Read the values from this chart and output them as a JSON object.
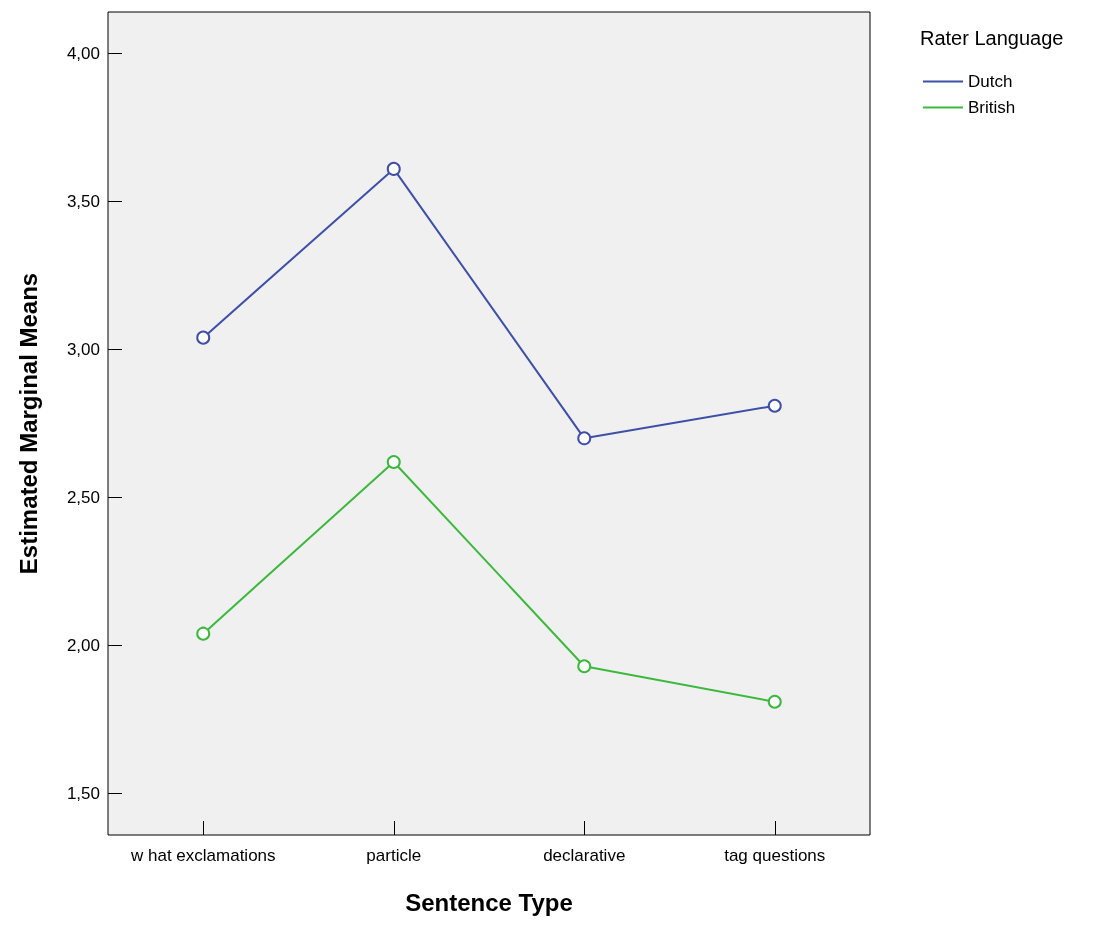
{
  "chart_data": {
    "type": "line",
    "xlabel": "Sentence Type",
    "ylabel": "Estimated Marginal Means",
    "legend_title": "Rater Language",
    "categories": [
      "w hat exclamations",
      "particle",
      "declarative",
      "tag questions"
    ],
    "series": [
      {
        "name": "Dutch",
        "color": "#3e4fa8",
        "values": [
          3.04,
          3.61,
          2.7,
          2.81
        ]
      },
      {
        "name": "British",
        "color": "#3cb93c",
        "values": [
          2.04,
          2.62,
          1.93,
          1.81
        ]
      }
    ],
    "ylim": [
      1.36,
      4.14
    ],
    "yticks": [
      {
        "value": 1.5,
        "label": "1,50"
      },
      {
        "value": 2,
        "label": "2,00"
      },
      {
        "value": 2.5,
        "label": "2,50"
      },
      {
        "value": 3,
        "label": "3,00"
      },
      {
        "value": 3.5,
        "label": "3,50"
      },
      {
        "value": 4,
        "label": "4,00"
      }
    ],
    "grid": false,
    "legend": "top right",
    "marker": "circle",
    "line_style": "solid"
  }
}
